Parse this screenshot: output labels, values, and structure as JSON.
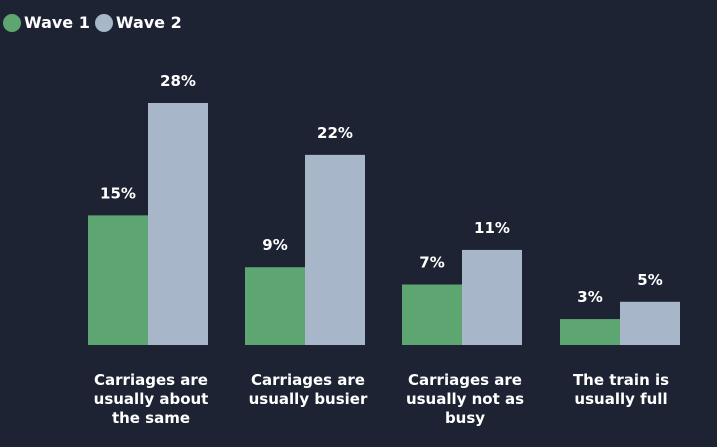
{
  "chart_data": {
    "type": "bar",
    "categories": [
      "Carriages are\nusually about\nthe same",
      "Carriages are\nusually busier",
      "Carriages are\nusually not as\nbusy",
      "The train is\nusually full"
    ],
    "series": [
      {
        "name": "Wave 1",
        "values": [
          15,
          9,
          7,
          3
        ],
        "labels": [
          "15%",
          "9%",
          "7%",
          "3%"
        ],
        "color": "#5da672"
      },
      {
        "name": "Wave 2",
        "values": [
          28,
          22,
          11,
          5
        ],
        "labels": [
          "28%",
          "22%",
          "11%",
          "5%"
        ],
        "color": "#a7b6c9"
      }
    ],
    "ylim": [
      0,
      28
    ],
    "grid": false,
    "legend": "top-left",
    "background": "#1d2333"
  }
}
